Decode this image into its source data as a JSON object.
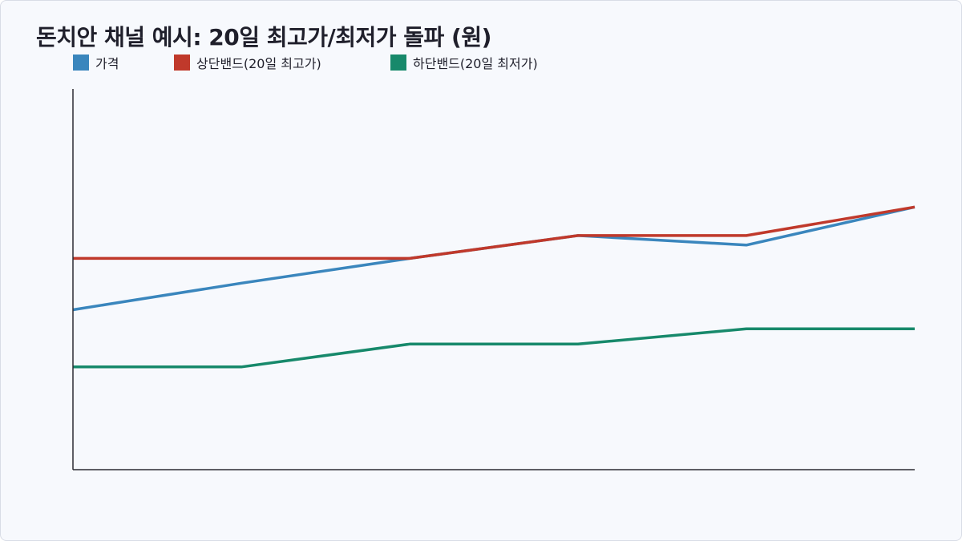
{
  "chart_data": {
    "type": "line",
    "title": "돈치안 채널 예시: 20일 최고가/최저가 돌파 (원)",
    "xlabel": "",
    "ylabel": "",
    "x": [
      0,
      1,
      2,
      3,
      4,
      5
    ],
    "ylim": [
      0,
      100
    ],
    "grid": false,
    "legend": "top-left",
    "series": [
      {
        "name": "가격",
        "color": "#3a86bd",
        "values": [
          42,
          49,
          55.5,
          61.5,
          59,
          69
        ]
      },
      {
        "name": "상단밴드(20일 최고가)",
        "color": "#c0392b",
        "values": [
          55.5,
          55.5,
          55.5,
          61.5,
          61.5,
          69
        ]
      },
      {
        "name": "하단밴드(20일 최저가)",
        "color": "#17896b",
        "values": [
          27,
          27,
          33,
          33,
          37,
          37
        ]
      }
    ]
  }
}
